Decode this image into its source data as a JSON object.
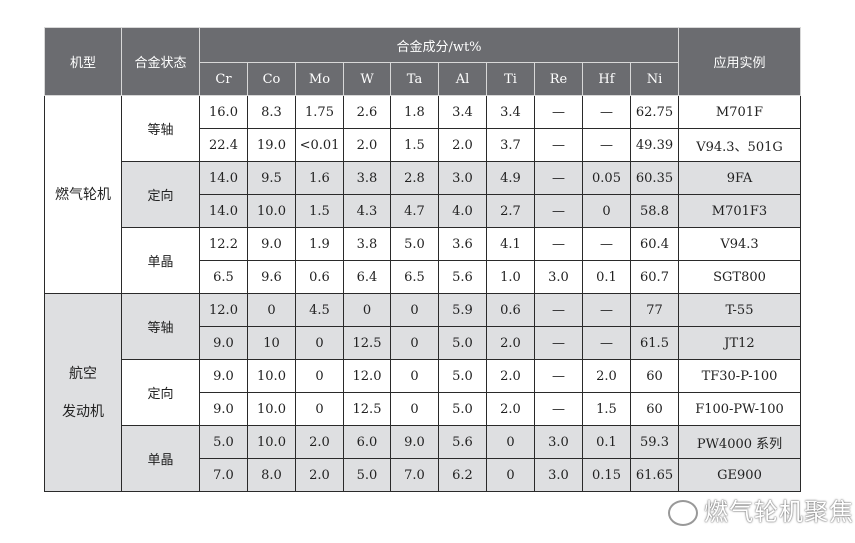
{
  "header": {
    "machine_type": "机型",
    "alloy_state": "合金状态",
    "composition": "合金成分/wt%",
    "application": "应用实例",
    "elements": [
      "Cr",
      "Co",
      "Mo",
      "W",
      "Ta",
      "Al",
      "Ti",
      "Re",
      "Hf",
      "Ni"
    ]
  },
  "groups": [
    {
      "name": "燃气轮机",
      "states": [
        {
          "name": "等轴",
          "rows": [
            {
              "values": [
                "16.0",
                "8.3",
                "1.75",
                "2.6",
                "1.8",
                "3.4",
                "3.4",
                "—",
                "—",
                "62.75"
              ],
              "app": "M701F"
            },
            {
              "values": [
                "22.4",
                "19.0",
                "<0.01",
                "2.0",
                "1.5",
                "2.0",
                "3.7",
                "—",
                "—",
                "49.39"
              ],
              "app": "V94.3、501G"
            }
          ]
        },
        {
          "name": "定向",
          "rows": [
            {
              "values": [
                "14.0",
                "9.5",
                "1.6",
                "3.8",
                "2.8",
                "3.0",
                "4.9",
                "—",
                "0.05",
                "60.35"
              ],
              "app": "9FA"
            },
            {
              "values": [
                "14.0",
                "10.0",
                "1.5",
                "4.3",
                "4.7",
                "4.0",
                "2.7",
                "—",
                "0",
                "58.8"
              ],
              "app": "M701F3"
            }
          ]
        },
        {
          "name": "单晶",
          "rows": [
            {
              "values": [
                "12.2",
                "9.0",
                "1.9",
                "3.8",
                "5.0",
                "3.6",
                "4.1",
                "—",
                "—",
                "60.4"
              ],
              "app": "V94.3"
            },
            {
              "values": [
                "6.5",
                "9.6",
                "0.6",
                "6.4",
                "6.5",
                "5.6",
                "1.0",
                "3.0",
                "0.1",
                "60.7"
              ],
              "app": "SGT800"
            }
          ]
        }
      ]
    },
    {
      "name": "航空\n发动机",
      "states": [
        {
          "name": "等轴",
          "rows": [
            {
              "values": [
                "12.0",
                "0",
                "4.5",
                "0",
                "0",
                "5.9",
                "0.6",
                "—",
                "—",
                "77"
              ],
              "app": "T-55"
            },
            {
              "values": [
                "9.0",
                "10",
                "0",
                "12.5",
                "0",
                "5.0",
                "2.0",
                "—",
                "—",
                "61.5"
              ],
              "app": "JT12"
            }
          ]
        },
        {
          "name": "定向",
          "rows": [
            {
              "values": [
                "9.0",
                "10.0",
                "0",
                "12.0",
                "0",
                "5.0",
                "2.0",
                "—",
                "2.0",
                "60"
              ],
              "app": "TF30-P-100"
            },
            {
              "values": [
                "9.0",
                "10.0",
                "0",
                "12.5",
                "0",
                "5.0",
                "2.0",
                "—",
                "1.5",
                "60"
              ],
              "app": "F100-PW-100"
            }
          ]
        },
        {
          "name": "单晶",
          "rows": [
            {
              "values": [
                "5.0",
                "10.0",
                "2.0",
                "6.0",
                "9.0",
                "5.6",
                "0",
                "3.0",
                "0.1",
                "59.3"
              ],
              "app": "PW4000 系列"
            },
            {
              "values": [
                "7.0",
                "8.0",
                "2.0",
                "5.0",
                "7.0",
                "6.2",
                "0",
                "3.0",
                "0.15",
                "61.65"
              ],
              "app": "GE900"
            }
          ]
        }
      ]
    }
  ],
  "shading": {
    "gray": [
      "燃气轮机/定向",
      "航空发动机/等轴",
      "航空发动机/单晶",
      "航空发动机"
    ],
    "header_bg": "#6b6c70",
    "gray_bg": "#dedfe1"
  },
  "watermark": {
    "icon": "wechat-icon",
    "text": "燃气轮机聚焦"
  }
}
